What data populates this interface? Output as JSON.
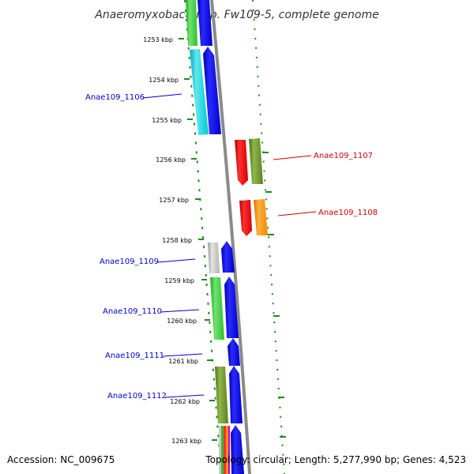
{
  "title": "Anaeromyxobacter sp. Fw109-5, complete genome",
  "footer": {
    "accession": "Accession: NC_009675",
    "topology": "Topology: circular; Length: 5,277,990 bp; Genes: 4,523"
  },
  "colors": {
    "dotted_track": "#1f8a1f",
    "backbone": "#8a8a8a",
    "label_forward": "#0000cc",
    "label_reverse": "#cc0000"
  },
  "ticks": [
    "1253 kbp",
    "1254 kbp",
    "1255 kbp",
    "1256 kbp",
    "1257 kbp",
    "1258 kbp",
    "1259 kbp",
    "1260 kbp",
    "1261 kbp",
    "1262 kbp",
    "1263 kbp"
  ],
  "gene_labels": [
    {
      "text": "Anae109_1106",
      "strand": "forward"
    },
    {
      "text": "Anae109_1107",
      "strand": "reverse"
    },
    {
      "text": "Anae109_1108",
      "strand": "reverse"
    },
    {
      "text": "Anae109_1109",
      "strand": "forward"
    },
    {
      "text": "Anae109_1110",
      "strand": "forward"
    },
    {
      "text": "Anae109_1111",
      "strand": "forward"
    },
    {
      "text": "Anae109_1112",
      "strand": "forward"
    }
  ]
}
